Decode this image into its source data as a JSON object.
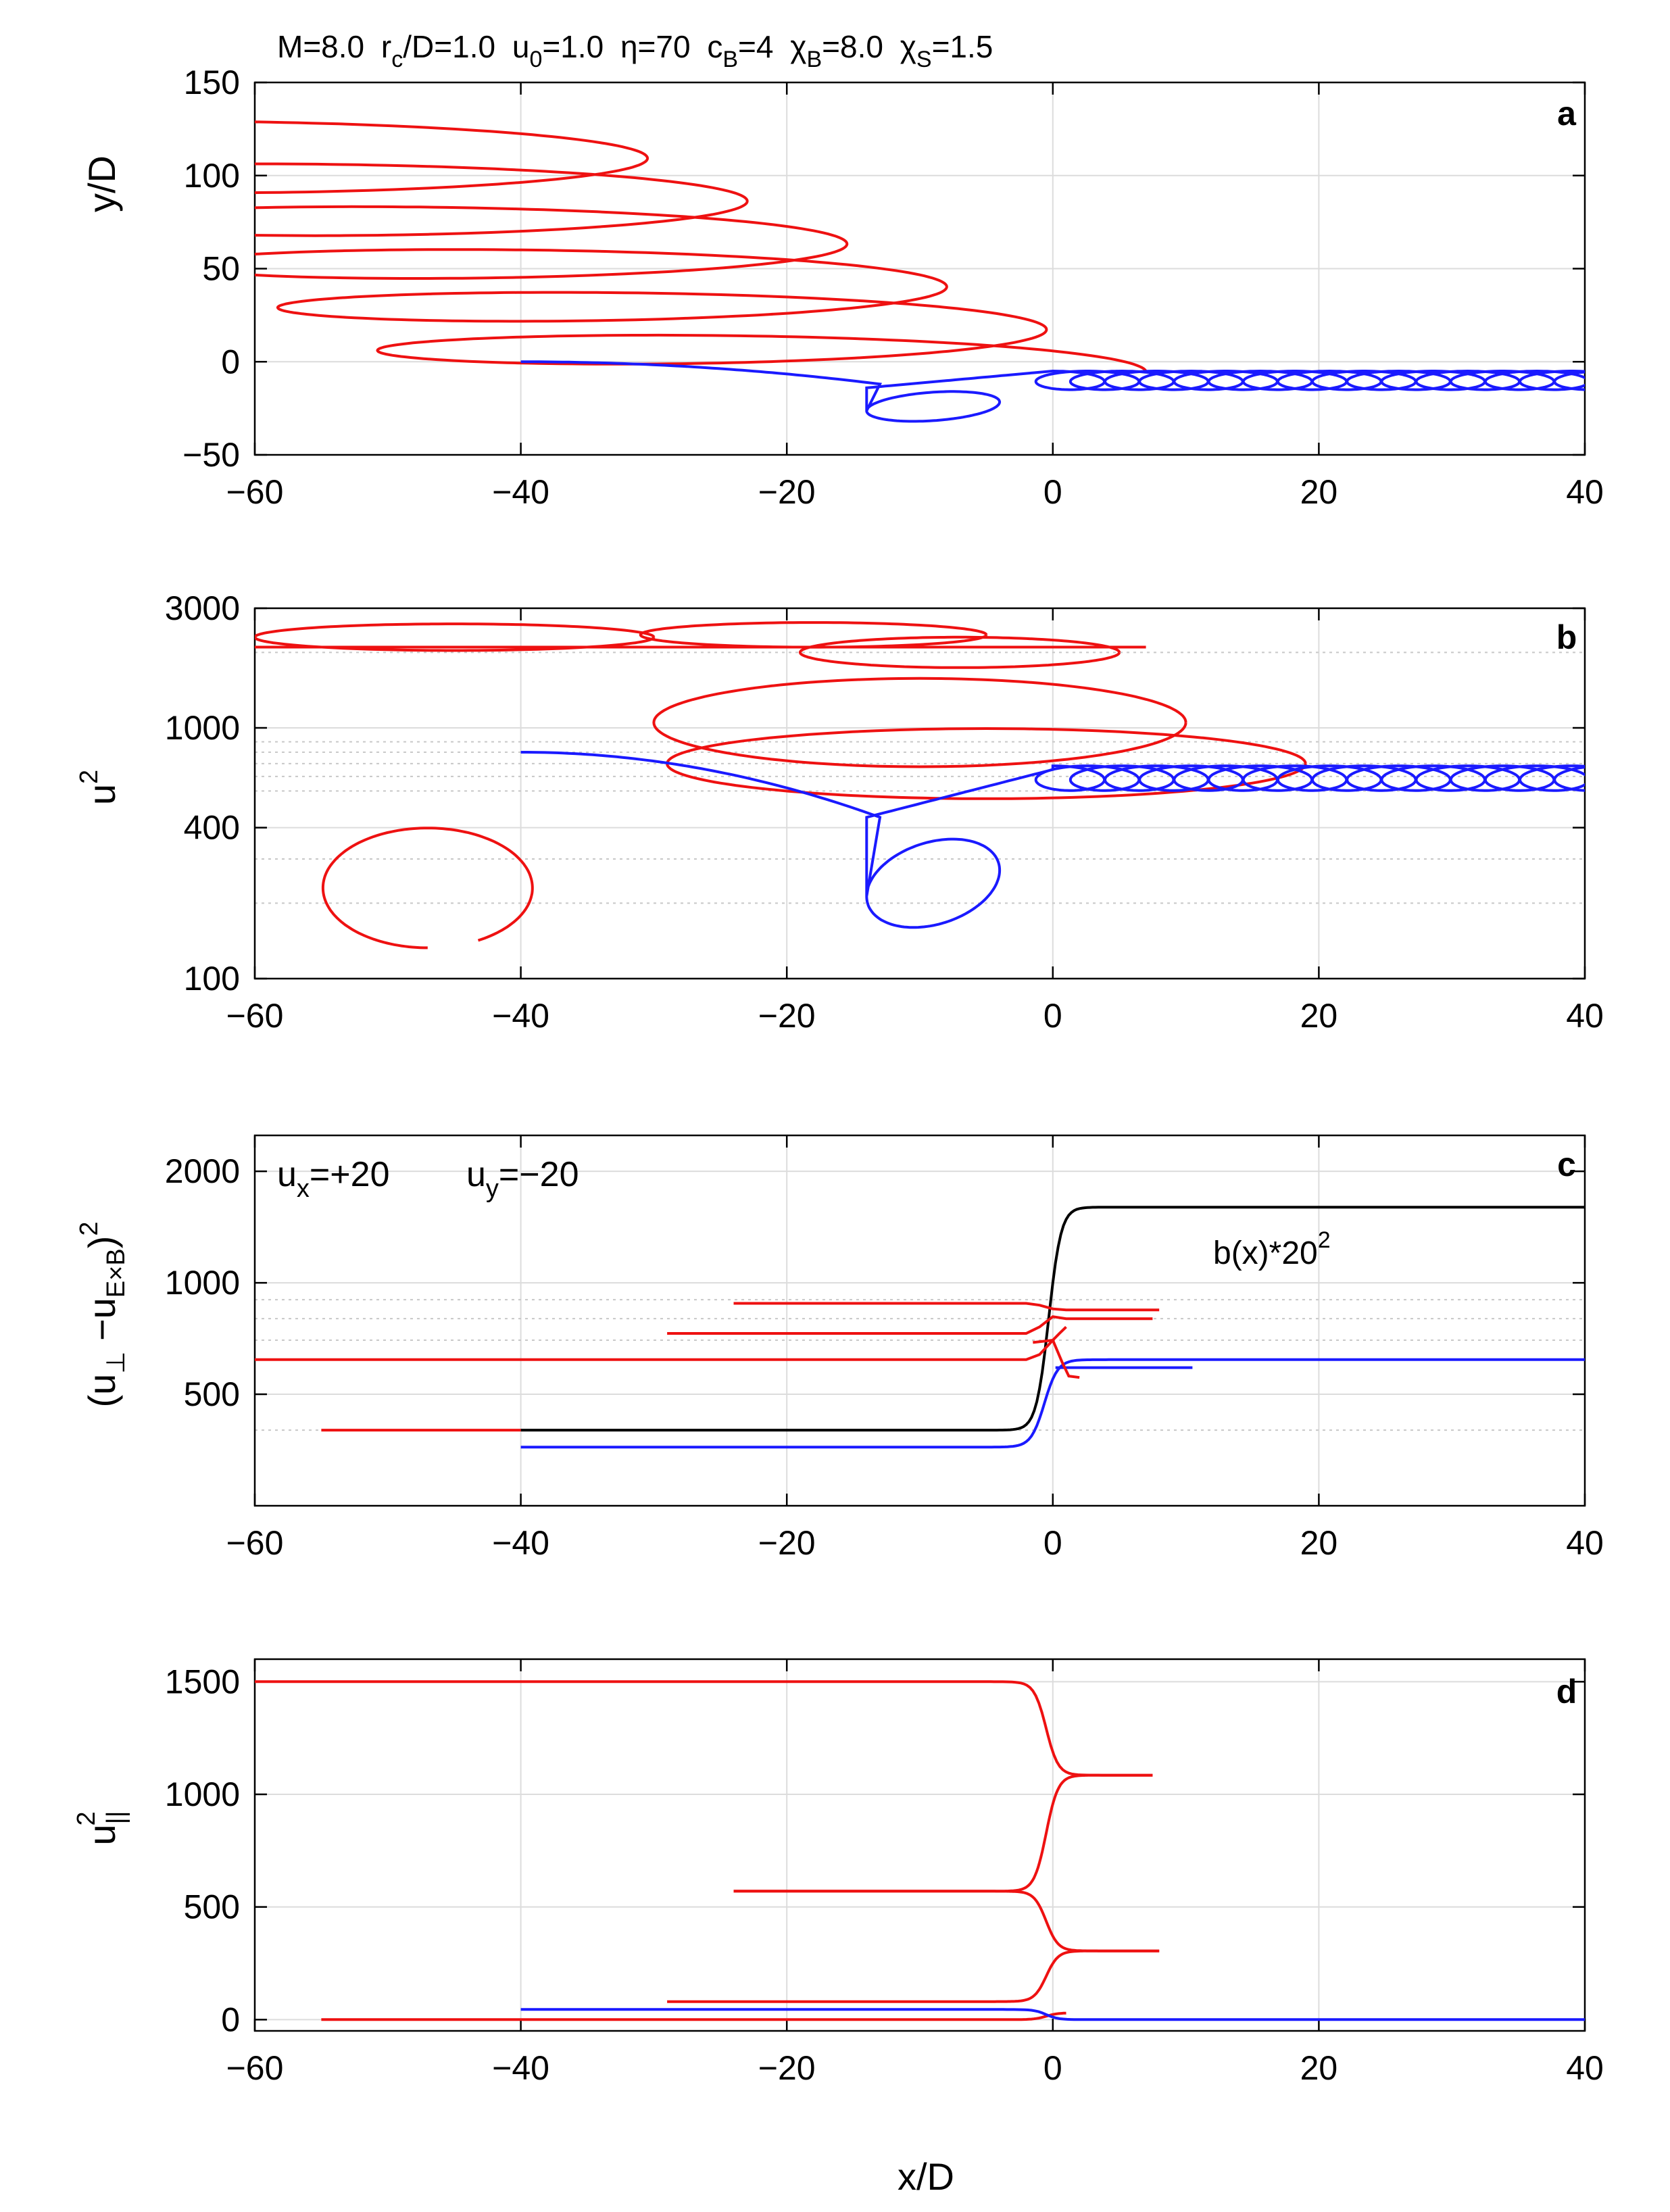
{
  "title_parts": {
    "M": "M=8.0",
    "rc_r": "r",
    "rc_sub": "c",
    "rc_rest": "/D=1.0",
    "u0_u": "u",
    "u0_sub": "0",
    "u0_rest": "=1.0",
    "eta": "η=70",
    "cB_c": "c",
    "cB_sub": "B",
    "cB_rest": "=4",
    "chiB_chi": "χ",
    "chiB_sub": "B",
    "chiB_rest": "=8.0",
    "chiS_chi": "χ",
    "chiS_sub": "S",
    "chiS_rest": "=1.5"
  },
  "colors": {
    "blue": "#1a1aff",
    "red": "#ee1111",
    "black": "#000000",
    "grid": "#dcdcdc"
  },
  "labels": {
    "xlabel": "x/D",
    "a_ylabel": "y/D",
    "b_ylabel_u": "u",
    "b_ylabel_sup": "2",
    "c_ylabel_open": "(u",
    "c_ylabel_perp": "⊥",
    "c_ylabel_mid": " −u",
    "c_ylabel_exb": "E×B",
    "c_ylabel_close": ")",
    "c_ylabel_sup": "2",
    "d_ylabel_u": "u",
    "d_ylabel_sub": "||",
    "d_ylabel_sup": "2"
  },
  "legend": {
    "blue_u": "u",
    "blue_sub": "x",
    "blue_rest": "=+20",
    "red_u": "u",
    "red_sub": "y",
    "red_rest": "=−20"
  },
  "annotation": {
    "text": "b(x)*20",
    "sup": "2"
  },
  "chart_data": [
    {
      "panel": "a",
      "type": "line",
      "xlim": [
        -60,
        40
      ],
      "ylim": [
        -50,
        150
      ],
      "xticks": [
        "−60",
        "−40",
        "−20",
        "0",
        "20",
        "40"
      ],
      "yticks": [
        "−50",
        "0",
        "50",
        "100",
        "150"
      ],
      "ytick_values": [
        -50,
        0,
        50,
        100,
        150
      ],
      "xlabel": "",
      "ylabel": "y/D",
      "series": [
        {
          "name": "blue (ux=+20)",
          "color": "blue",
          "description": "starts at (-40,0); drifts to large loop centred near (-9,-28); then gyrates with radius ~3 between y=-15 and y=-5 from x=0 to x=40"
        },
        {
          "name": "red (uy=-20)",
          "color": "red",
          "description": "starts at (-40,0); large gyration loops of radius ~20 in x drifting upward to y≈130 and leftward to x=-60"
        }
      ]
    },
    {
      "panel": "b",
      "type": "line",
      "yscale": "log",
      "xlim": [
        -60,
        40
      ],
      "ylim": [
        100,
        3000
      ],
      "xticks": [
        "−60",
        "−40",
        "−20",
        "0",
        "20",
        "40"
      ],
      "yticks": [
        "100",
        "400",
        "1000",
        "3000"
      ],
      "ytick_values": [
        100,
        400,
        1000,
        3000
      ],
      "ylabel": "u^2",
      "series": [
        {
          "name": "blue",
          "color": "blue",
          "description": "starts at (-40,800); loop down to minimum ~160 near x=-9; then oscillates between ~560 and ~700 for x>0"
        },
        {
          "name": "red",
          "color": "red",
          "description": "from (-40,480) loop down to ~150 at x=-47, up to ~620, loops with u^2 up to ~2600"
        }
      ]
    },
    {
      "panel": "c",
      "type": "line",
      "yscale": "log",
      "xlim": [
        -60,
        40
      ],
      "ylim": [
        250,
        2500
      ],
      "xticks": [
        "−60",
        "−40",
        "−20",
        "0",
        "20",
        "40"
      ],
      "yticks": [
        "500",
        "1000",
        "2000"
      ],
      "ytick_values": [
        500,
        1000,
        2000
      ],
      "ylabel": "(u_perp - u_ExB)^2",
      "series": [
        {
          "name": "b(x)*20^2",
          "color": "black",
          "x_start": -40,
          "x_end": 40,
          "low": 400,
          "high": 1600,
          "transition_center": 0
        },
        {
          "name": "blue",
          "color": "blue",
          "segments": [
            {
              "x_start": -40,
              "x_end": -1,
              "y_low": 360,
              "y_high": 620,
              "x_mid": 0,
              "x_final": 40
            },
            {
              "x_start": 0,
              "x_end": 10.5,
              "y": 590
            }
          ]
        },
        {
          "name": "red",
          "color": "red",
          "segments": [
            {
              "x_start": -55,
              "x_end": -40,
              "y": 400
            },
            {
              "x_start": -60,
              "x_end": -1,
              "y": 620
            },
            {
              "x_start": -29,
              "x_end": -1,
              "y": 730
            },
            {
              "x_start": -24,
              "x_end": -1,
              "y": 880
            },
            {
              "x_start": 0,
              "x_end": 7.5,
              "y": 800
            },
            {
              "x_start": 0,
              "x_end": 8,
              "y": 845
            },
            {
              "x_start": 0,
              "x_end": 2,
              "y": 555
            }
          ]
        }
      ]
    },
    {
      "panel": "d",
      "type": "line",
      "xlim": [
        -60,
        40
      ],
      "ylim": [
        -50,
        1600
      ],
      "xticks": [
        "−60",
        "−40",
        "−20",
        "0",
        "20",
        "40"
      ],
      "yticks": [
        "0",
        "500",
        "1000",
        "1500"
      ],
      "ytick_values": [
        0,
        500,
        1000,
        1500
      ],
      "xlabel": "x/D",
      "ylabel": "u_||^2",
      "series": [
        {
          "name": "red",
          "color": "red",
          "segments": [
            {
              "x_from": -60,
              "x_to": -2,
              "y_from": 1500,
              "y_to": 1500,
              "x_end": 7.5,
              "y_end": 1085
            },
            {
              "x_from": -24,
              "x_to": -2,
              "y_from": 570,
              "y_to": 570,
              "x_end": 7.5,
              "y_end": 1085
            },
            {
              "x_from": -24,
              "x_to": -2,
              "y_from": 570,
              "y_to": 570,
              "x_end": 8,
              "y_end": 305
            },
            {
              "x_from": -29,
              "x_to": -2,
              "y_from": 80,
              "y_to": 80,
              "x_end": 8,
              "y_end": 305
            },
            {
              "x_from": -55,
              "x_to": -2,
              "y_from": 0,
              "y_to": 0,
              "x_end": 1,
              "y_end": 30
            }
          ]
        },
        {
          "name": "blue",
          "color": "blue",
          "segments": [
            {
              "x_from": -40,
              "x_to": -2,
              "y_from": 45,
              "y_to": 45,
              "x_end": 40,
              "y_end": 0
            }
          ]
        }
      ]
    }
  ]
}
